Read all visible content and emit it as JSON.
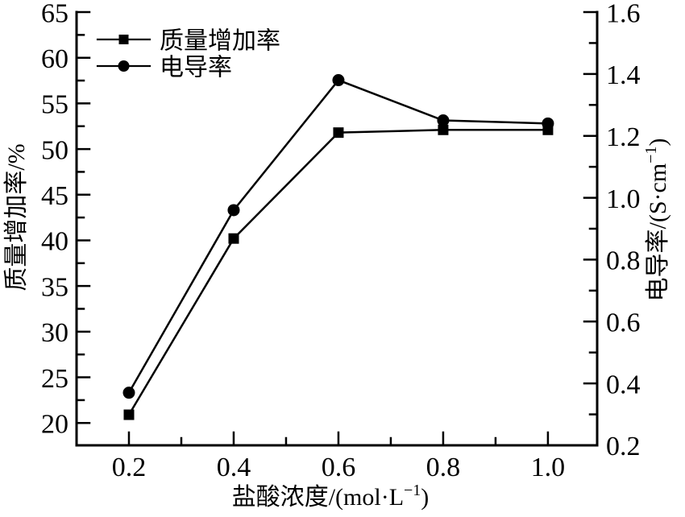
{
  "figure": {
    "background": "#ffffff",
    "stroke_color": "#000000"
  },
  "chart_data": {
    "type": "line",
    "x": [
      0.2,
      0.4,
      0.6,
      0.8,
      1.0
    ],
    "series": [
      {
        "name": "质量增加率",
        "axis": "left",
        "marker": "square",
        "values": [
          20.9,
          40.2,
          51.8,
          52.1,
          52.1
        ]
      },
      {
        "name": "电导率",
        "axis": "right",
        "marker": "circle",
        "values": [
          0.37,
          0.96,
          1.38,
          1.25,
          1.24
        ]
      }
    ],
    "xlabel": {
      "pre": "盐酸浓度/(mol·L",
      "sup": "−1",
      "post": ")"
    },
    "ylabel_left": "质量增加率/%",
    "ylabel_right": {
      "pre": "电导率/(S·cm",
      "sup": "−1",
      "post": ")"
    },
    "x_tick_labels": [
      "0.2",
      "0.4",
      "0.6",
      "0.8",
      "1.0"
    ],
    "x_tick_values": [
      0.2,
      0.4,
      0.6,
      0.8,
      1.0
    ],
    "x_minor_ticks": [
      0.3,
      0.5,
      0.7,
      0.9
    ],
    "left_tick_labels": [
      "65",
      "60",
      "55",
      "50",
      "45",
      "40",
      "35",
      "30",
      "25",
      "20"
    ],
    "left_tick_values": [
      65,
      60,
      55,
      50,
      45,
      40,
      35,
      30,
      25,
      20
    ],
    "left_minor_ticks": [
      62.5,
      57.5,
      52.5,
      47.5,
      42.5,
      37.5,
      32.5,
      27.5,
      22.5
    ],
    "right_tick_labels": [
      "1.6",
      "1.4",
      "1.2",
      "1.0",
      "0.8",
      "0.6",
      "0.4",
      "0.2"
    ],
    "right_tick_values": [
      1.6,
      1.4,
      1.2,
      1.0,
      0.8,
      0.6,
      0.4,
      0.2
    ],
    "right_minor_ticks": [
      1.5,
      1.3,
      1.1,
      0.9,
      0.7,
      0.5,
      0.3
    ],
    "xlim": [
      0.1,
      1.094
    ],
    "left_ylim": [
      17.55,
      65
    ],
    "right_ylim": [
      0.2,
      1.6
    ],
    "grid": false,
    "legend_position": "top-left",
    "colors": {
      "stroke": "#000000",
      "background": "#ffffff"
    }
  }
}
